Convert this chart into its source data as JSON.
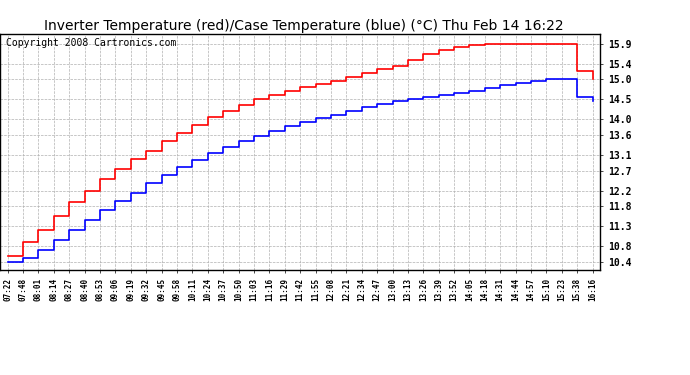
{
  "title": "Inverter Temperature (red)/Case Temperature (blue) (°C) Thu Feb 14 16:22",
  "copyright": "Copyright 2008 Cartronics.com",
  "yticks": [
    10.4,
    10.8,
    11.3,
    11.8,
    12.2,
    12.7,
    13.1,
    13.6,
    14.0,
    14.5,
    15.0,
    15.4,
    15.9
  ],
  "ylim": [
    10.2,
    16.15
  ],
  "xtick_labels": [
    "07:22",
    "07:48",
    "08:01",
    "08:14",
    "08:27",
    "08:40",
    "08:53",
    "09:06",
    "09:19",
    "09:32",
    "09:45",
    "09:58",
    "10:11",
    "10:24",
    "10:37",
    "10:50",
    "11:03",
    "11:16",
    "11:29",
    "11:42",
    "11:55",
    "12:08",
    "12:21",
    "12:34",
    "12:47",
    "13:00",
    "13:13",
    "13:26",
    "13:39",
    "13:52",
    "14:05",
    "14:18",
    "14:31",
    "14:44",
    "14:57",
    "15:10",
    "15:23",
    "15:38",
    "16:16"
  ],
  "red_vals": [
    10.55,
    10.9,
    11.2,
    11.55,
    11.9,
    12.2,
    12.5,
    12.75,
    13.0,
    13.2,
    13.45,
    13.65,
    13.85,
    14.05,
    14.2,
    14.35,
    14.5,
    14.6,
    14.7,
    14.8,
    14.88,
    14.95,
    15.05,
    15.15,
    15.25,
    15.35,
    15.5,
    15.65,
    15.75,
    15.82,
    15.87,
    15.9,
    15.9,
    15.9,
    15.9,
    15.9,
    15.9,
    15.2,
    15.0
  ],
  "blue_vals": [
    10.4,
    10.5,
    10.7,
    10.95,
    11.2,
    11.45,
    11.7,
    11.95,
    12.15,
    12.38,
    12.6,
    12.8,
    12.98,
    13.15,
    13.3,
    13.45,
    13.58,
    13.7,
    13.82,
    13.93,
    14.02,
    14.1,
    14.2,
    14.3,
    14.38,
    14.45,
    14.5,
    14.55,
    14.6,
    14.65,
    14.7,
    14.78,
    14.85,
    14.9,
    14.95,
    15.0,
    15.0,
    14.55,
    14.45
  ],
  "red_line_color": "#ff0000",
  "blue_line_color": "#0000ff",
  "background_color": "#ffffff",
  "grid_color": "#b0b0b0",
  "title_fontsize": 10,
  "copyright_fontsize": 7
}
